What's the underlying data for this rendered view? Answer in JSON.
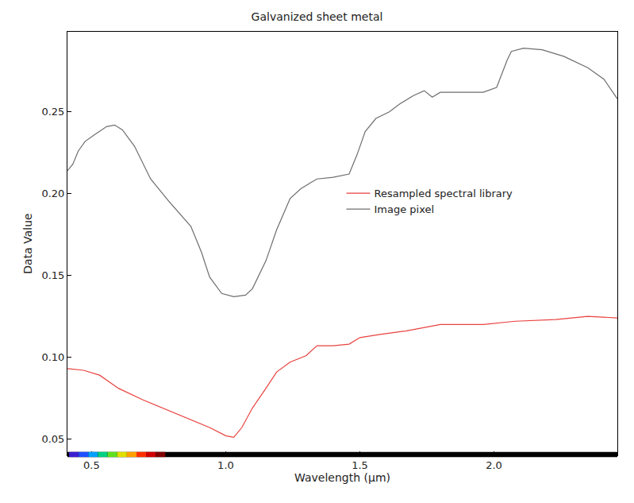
{
  "chart_data": {
    "type": "line",
    "title": "Galvanized sheet metal",
    "x_label": "Wavelength (µm)",
    "y_label": "Data Value",
    "xlim": [
      0.41,
      2.46
    ],
    "ylim": [
      0.04,
      0.299
    ],
    "xticks": [
      {
        "value": 0.5,
        "label": "0.5"
      },
      {
        "value": 1.0,
        "label": "1.0"
      },
      {
        "value": 1.5,
        "label": "1.5"
      },
      {
        "value": 2.0,
        "label": "2.0"
      }
    ],
    "yticks": [
      0.05,
      {
        "value": 0.1,
        "label": "0.10"
      },
      0.15,
      {
        "value": 0.2,
        "label": "0.20"
      },
      0.25
    ],
    "grid": false,
    "legend": "right",
    "series": [
      {
        "name": "Resampled spectral library",
        "color": "#e8423f",
        "x": [
          0.41,
          0.47,
          0.53,
          0.6,
          0.69,
          0.78,
          0.87,
          0.94,
          1.0,
          1.03,
          1.06,
          1.1,
          1.15,
          1.19,
          1.24,
          1.3,
          1.34,
          1.4,
          1.46,
          1.5,
          1.58,
          1.67,
          1.8,
          1.96,
          2.08,
          2.23,
          2.35,
          2.46
        ],
        "values": [
          0.093,
          0.092,
          0.089,
          0.081,
          0.074,
          0.068,
          0.062,
          0.057,
          0.052,
          0.051,
          0.057,
          0.069,
          0.081,
          0.091,
          0.097,
          0.101,
          0.107,
          0.107,
          0.108,
          0.112,
          0.114,
          0.116,
          0.12,
          0.12,
          0.122,
          0.123,
          0.125,
          0.124
        ]
      },
      {
        "name": "Image pixel",
        "color": "#6e6e6e",
        "x": [
          0.41,
          0.43,
          0.45,
          0.476,
          0.51,
          0.556,
          0.586,
          0.615,
          0.66,
          0.72,
          0.79,
          0.87,
          0.91,
          0.94,
          0.985,
          1.03,
          1.074,
          1.1,
          1.15,
          1.19,
          1.24,
          1.28,
          1.32,
          1.34,
          1.4,
          1.46,
          1.49,
          1.52,
          1.56,
          1.61,
          1.65,
          1.7,
          1.74,
          1.755,
          1.77,
          1.8,
          1.86,
          1.96,
          2.01,
          2.05,
          2.065,
          2.11,
          2.18,
          2.26,
          2.35,
          2.41,
          2.46
        ],
        "values": [
          0.214,
          0.218,
          0.226,
          0.232,
          0.236,
          0.241,
          0.242,
          0.239,
          0.229,
          0.209,
          0.195,
          0.18,
          0.164,
          0.149,
          0.139,
          0.137,
          0.138,
          0.142,
          0.159,
          0.178,
          0.197,
          0.203,
          0.207,
          0.209,
          0.21,
          0.212,
          0.224,
          0.238,
          0.246,
          0.25,
          0.255,
          0.26,
          0.263,
          0.261,
          0.259,
          0.262,
          0.262,
          0.262,
          0.265,
          0.282,
          0.287,
          0.289,
          0.288,
          0.284,
          0.277,
          0.27,
          0.258
        ]
      }
    ]
  }
}
